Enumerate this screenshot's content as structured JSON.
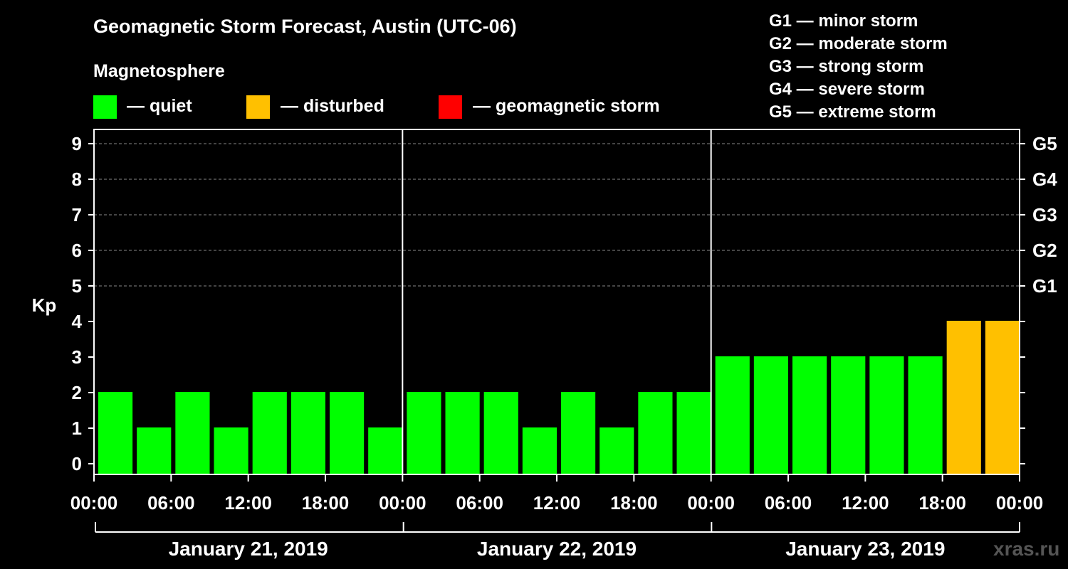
{
  "title": "Geomagnetic Storm Forecast, Austin (UTC-06)",
  "legend": {
    "heading": "Magnetosphere",
    "items": [
      {
        "label": "— quiet",
        "color": "#00ff00"
      },
      {
        "label": "— disturbed",
        "color": "#ffc000"
      },
      {
        "label": "— geomagnetic storm",
        "color": "#ff0000"
      }
    ]
  },
  "g_scale": [
    "G1 — minor storm",
    "G2 — moderate storm",
    "G3 — strong storm",
    "G4 — severe storm",
    "G5 — extreme storm"
  ],
  "watermark": "xras.ru",
  "chart_data": {
    "type": "bar",
    "ylabel": "Kp",
    "ylim": [
      0,
      9
    ],
    "yticks": [
      0,
      1,
      2,
      3,
      4,
      5,
      6,
      7,
      8,
      9
    ],
    "right_ticks": [
      {
        "kp": 5,
        "label": "G1"
      },
      {
        "kp": 6,
        "label": "G2"
      },
      {
        "kp": 7,
        "label": "G3"
      },
      {
        "kp": 8,
        "label": "G4"
      },
      {
        "kp": 9,
        "label": "G5"
      }
    ],
    "grid": "horizontal dashed at Kp 5–9",
    "xtick_labels": [
      "00:00",
      "06:00",
      "12:00",
      "18:00",
      "00:00",
      "06:00",
      "12:00",
      "18:00",
      "00:00",
      "06:00",
      "12:00",
      "18:00",
      "00:00"
    ],
    "days": [
      "January 21, 2019",
      "January 22, 2019",
      "January 23, 2019"
    ],
    "bins_per_day": 8,
    "values": [
      2,
      1,
      2,
      1,
      2,
      2,
      2,
      1,
      2,
      2,
      2,
      1,
      2,
      1,
      2,
      2,
      3,
      3,
      3,
      3,
      3,
      3,
      4,
      4
    ],
    "colors": {
      "quiet": "#00ff00",
      "disturbed": "#ffc000",
      "storm": "#ff0000"
    }
  }
}
